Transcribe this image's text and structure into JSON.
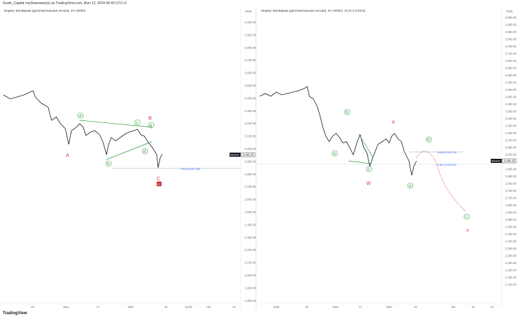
{
  "header": {
    "text": "South_Capital опубликовал(а) на TradingView.com, Июн 12, 2024 04:43 UTC+3"
  },
  "left": {
    "legend": "Индекс МосБиржи (дополнительная сессия), 4Ч, MOEX",
    "currency": "RUB",
    "price_label": "3,009.25",
    "price_tag": "IMOEX2",
    "y_ticks": [
      "4,000.00",
      "3,900.00",
      "3,800.00",
      "3,700.00",
      "3,600.00",
      "3,500.00",
      "3,400.00",
      "3,300.00",
      "3,200.00",
      "3,100.00",
      "3,000.00",
      "2,900.00",
      "2,800.00",
      "2,700.00",
      "2,600.00",
      "2,500.00",
      "2,400.00",
      "2,300.00",
      "2,200.00",
      "2,100.00",
      "2,000.00",
      "1,900.00",
      "1,800.00"
    ],
    "x_ticks": [
      "20",
      "Июн",
      "17",
      "Июл",
      "15",
      "15:00",
      "Авг",
      "12"
    ],
    "fib": "0.618 (2,907.46)",
    "labels": {
      "A": "A",
      "B": "B",
      "C": "C",
      "a": "a",
      "b": "b",
      "c": "c",
      "d": "d",
      "e": "e",
      "alert": "A"
    }
  },
  "right": {
    "legend": "Индекс МосБиржи (дополнительная сессия), 4Ч, MOEX  +0.24 (+0.01%)",
    "currency": "RUB",
    "price_label": "3,009.25",
    "price_tag": "IMOEX2",
    "y_ticks": [
      "3,950.00",
      "3,900.00",
      "3,850.00",
      "3,800.00",
      "3,750.00",
      "3,700.00",
      "3,650.00",
      "3,600.00",
      "3,550.00",
      "3,500.00",
      "3,450.00",
      "3,400.00",
      "3,350.00",
      "3,300.00",
      "3,250.00",
      "3,200.00",
      "3,150.00",
      "3,100.00",
      "3,050.00",
      "3,000.00",
      "2,950.00",
      "2,900.00",
      "2,850.00",
      "2,800.00",
      "2,750.00",
      "2,700.00",
      "2,650.00",
      "2,600.00",
      "2,550.00",
      "2,500.00",
      "2,450.00",
      "2,400.00",
      "2,350.00",
      "2,300.00",
      "2,250.00",
      "2,200.00",
      "2,150.00",
      "2,100.00"
    ],
    "x_ticks": [
      "Май",
      "20",
      "Июн",
      "17",
      "Июл",
      "15",
      "Авг",
      "12",
      "21"
    ],
    "fib1": "0.618 (3,132.74)",
    "fib2": "0.382 (3,029.95)",
    "labels": {
      "X": "X",
      "W": "W",
      "Y": "Y",
      "a1": "a",
      "b1": "b",
      "c1": "c",
      "a2": "a",
      "b2": "b",
      "c2": "c"
    }
  },
  "footer": {
    "logo": "TradingView"
  },
  "colors": {
    "wave_green": "#2e9a3a",
    "wave_red": "#d1363d",
    "fib": "#2962ff",
    "candle": "#131722"
  }
}
